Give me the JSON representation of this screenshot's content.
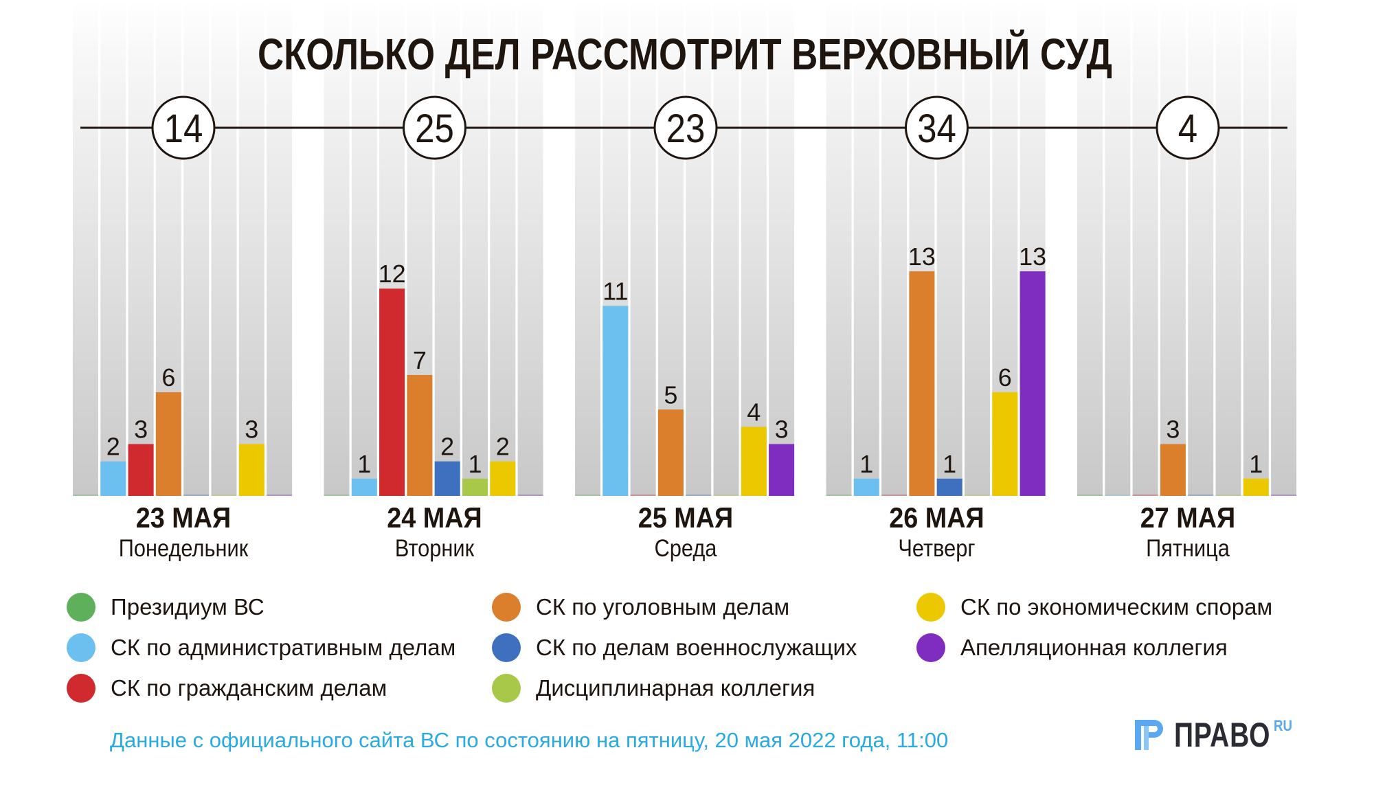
{
  "title": "СКОЛЬКО ДЕЛ РАССМОТРИТ ВЕРХОВНЫЙ СУД",
  "footnote": "Данные с официального сайта ВС по состоянию на пятницу, 20 мая 2022 года, 11:00",
  "logo": {
    "word": "ПРАВО",
    "suffix": "RU",
    "icon": "pravo-logo-icon"
  },
  "colors": {
    "presidium": "#5fb05a",
    "admin": "#6cc0f0",
    "civil": "#d0292e",
    "criminal": "#dc7f2c",
    "military": "#3f70c0",
    "disciplinary": "#a8c84a",
    "economic": "#ecc800",
    "appellate": "#7f2cc0",
    "text": "#1e160e",
    "footnote": "#29abe2"
  },
  "legend": [
    {
      "key": "presidium",
      "label": "Президиум ВС"
    },
    {
      "key": "admin",
      "label": "СК по административным делам"
    },
    {
      "key": "civil",
      "label": "СК по гражданским делам"
    },
    {
      "key": "criminal",
      "label": "СК по уголовным делам"
    },
    {
      "key": "military",
      "label": "СК по делам военнослужащих"
    },
    {
      "key": "disciplinary",
      "label": "Дисциплинарная коллегия"
    },
    {
      "key": "economic",
      "label": "СК по экономическим спорам"
    },
    {
      "key": "appellate",
      "label": "Апелляционная коллегия"
    }
  ],
  "chart_data": {
    "type": "bar",
    "title": "СКОЛЬКО ДЕЛ РАССМОТРИТ ВЕРХОВНЫЙ СУД",
    "xlabel": "",
    "ylabel": "",
    "ylim": [
      0,
      13
    ],
    "grid": false,
    "legend_position": "bottom",
    "categories": [
      "23 МАЯ",
      "24 МАЯ",
      "25 МАЯ",
      "26 МАЯ",
      "27 МАЯ"
    ],
    "weekdays": [
      "Понедельник",
      "Вторник",
      "Среда",
      "Четверг",
      "Пятница"
    ],
    "totals": [
      14,
      25,
      23,
      34,
      4
    ],
    "series": [
      {
        "key": "presidium",
        "name": "Президиум ВС",
        "values": [
          0,
          0,
          0,
          0,
          0
        ]
      },
      {
        "key": "admin",
        "name": "СК по административным делам",
        "values": [
          2,
          1,
          11,
          1,
          0
        ]
      },
      {
        "key": "civil",
        "name": "СК по гражданским делам",
        "values": [
          3,
          12,
          0,
          0,
          0
        ]
      },
      {
        "key": "criminal",
        "name": "СК по уголовным делам",
        "values": [
          6,
          7,
          5,
          13,
          3
        ]
      },
      {
        "key": "military",
        "name": "СК по делам военнослужащих",
        "values": [
          0,
          2,
          0,
          1,
          0
        ]
      },
      {
        "key": "disciplinary",
        "name": "Дисциплинарная коллегия",
        "values": [
          0,
          1,
          0,
          0,
          0
        ]
      },
      {
        "key": "economic",
        "name": "СК по экономическим спорам",
        "values": [
          3,
          2,
          4,
          6,
          1
        ]
      },
      {
        "key": "appellate",
        "name": "Апелляционная коллегия",
        "values": [
          0,
          0,
          3,
          13,
          0
        ]
      }
    ]
  }
}
